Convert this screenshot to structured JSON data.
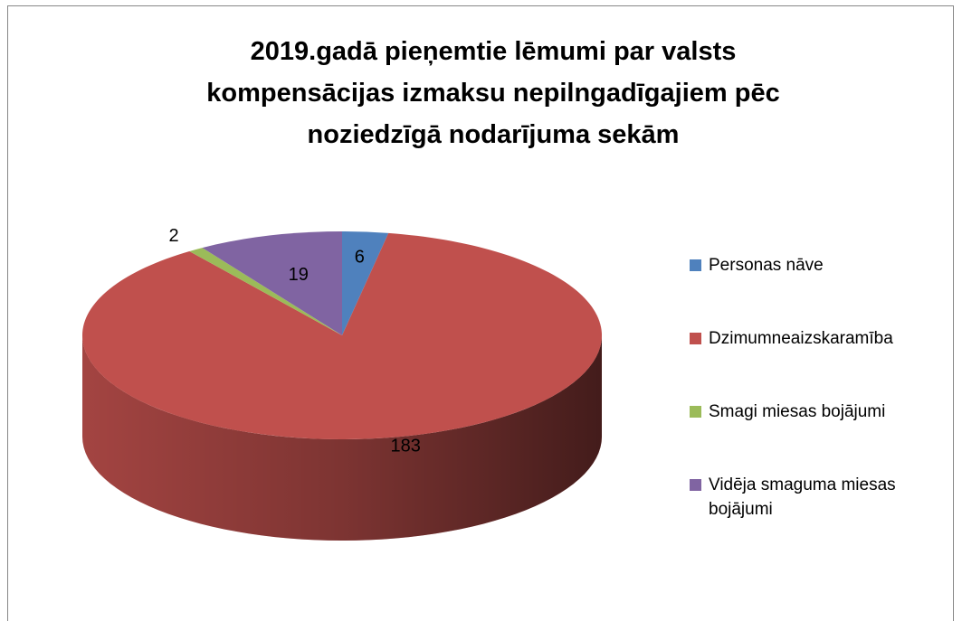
{
  "chart_data": {
    "type": "pie",
    "title": "2019.gadā pieņemtie lēmumi par valsts kompensācijas izmaksu nepilngadīgajiem pēc noziedzīgā nodarījuma sekām",
    "categories": [
      "Personas nāve",
      "Dzimumneaizskaramība",
      "Smagi miesas bojājumi",
      "Vidēja smaguma miesas bojājumi"
    ],
    "values": [
      6,
      183,
      2,
      19
    ],
    "colors": [
      "#4f81bd",
      "#c0504d",
      "#9bbb59",
      "#8064a2"
    ],
    "legend": "right"
  }
}
